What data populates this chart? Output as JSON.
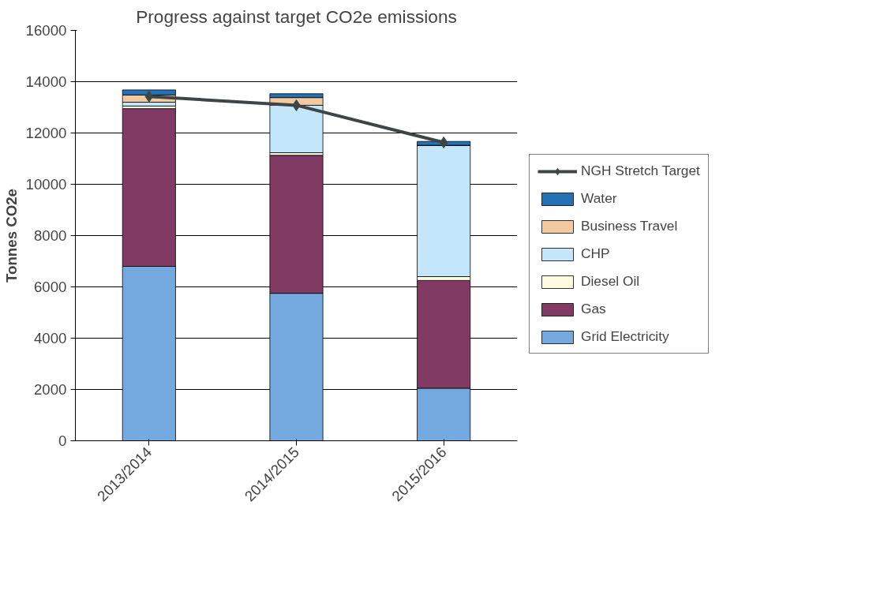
{
  "chart_data": {
    "type": "bar",
    "title": "Progress against target CO2e emissions",
    "ylabel": "Tonnes CO2e",
    "stacked": true,
    "categories": [
      "2013/2014",
      "2014/2015",
      "2015/2016"
    ],
    "series": [
      {
        "name": "Grid Electricity",
        "color": "#74a9e0",
        "values": [
          6800,
          5750,
          2050
        ]
      },
      {
        "name": "Gas",
        "color": "#803a64",
        "values": [
          6150,
          5380,
          4200
        ]
      },
      {
        "name": "Diesel Oil",
        "color": "#fffbe0",
        "values": [
          100,
          100,
          150
        ]
      },
      {
        "name": "CHP",
        "color": "#c4e6fb",
        "values": [
          150,
          1850,
          5120
        ]
      },
      {
        "name": "Business Travel",
        "color": "#f3c9a0",
        "values": [
          280,
          300,
          0
        ]
      },
      {
        "name": "Water",
        "color": "#2471b6",
        "values": [
          200,
          150,
          150
        ]
      },
      {
        "name": "NGH Stretch Target",
        "type": "line",
        "color": "#3f4446",
        "marker": "diamond",
        "values": [
          13420,
          13080,
          11630
        ]
      }
    ],
    "ylim": [
      0,
      16000
    ],
    "yticks": [
      0,
      2000,
      4000,
      6000,
      8000,
      10000,
      12000,
      14000,
      16000
    ],
    "grid": "y",
    "legend": "right"
  }
}
